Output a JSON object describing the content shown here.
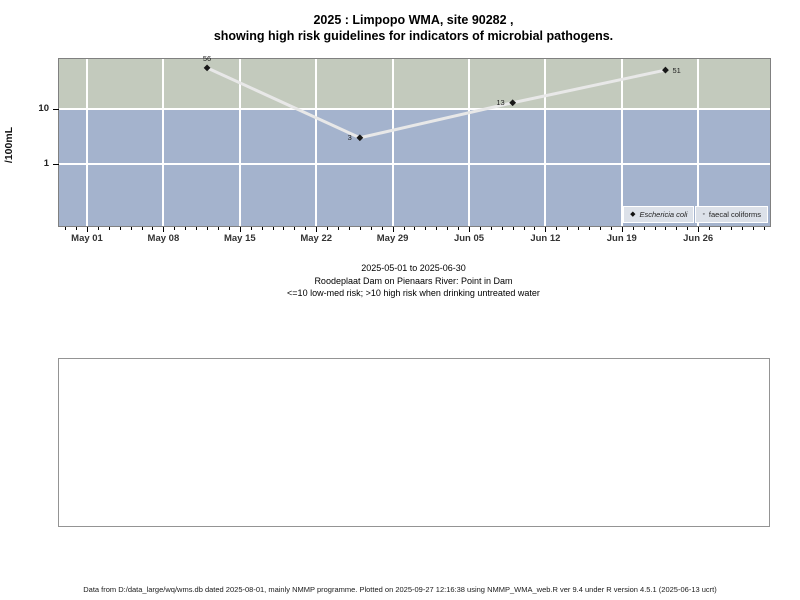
{
  "title": {
    "line1": "2025 : Limpopo WMA, site 90282 ,",
    "line2": "showing high risk guidelines for indicators of microbial pathogens."
  },
  "chart_data": {
    "type": "line",
    "title": "2025 : Limpopo WMA, site 90282 , showing high risk guidelines for indicators of microbial pathogens.",
    "ylabel": "/100mL",
    "y_scale": "log",
    "ylim": [
      0.07,
      75
    ],
    "x_range": [
      "2025-05-01",
      "2025-06-30"
    ],
    "x_ticks": [
      "May 01",
      "May 08",
      "May 15",
      "May 22",
      "May 29",
      "Jun 05",
      "Jun 12",
      "Jun 19",
      "Jun 26"
    ],
    "y_ticks": [
      {
        "value": 1,
        "label": "1"
      },
      {
        "value": 10,
        "label": "10"
      }
    ],
    "grid": true,
    "bands": {
      "threshold": 10,
      "above_color": "#c3cabd",
      "below_color": "#a4b3cd",
      "above_meaning": "high risk",
      "below_meaning": "low-med risk"
    },
    "line_color": "#e8e8e8",
    "marker_color": "#181818",
    "legend_position": "bottom-right inside plot",
    "series": [
      {
        "name": "Eschericia coli",
        "marker": "filled-diamond",
        "points": [
          {
            "date": "2025-05-12",
            "value": 56
          },
          {
            "date": "2025-05-26",
            "value": 3
          },
          {
            "date": "2025-06-09",
            "value": 13
          },
          {
            "date": "2025-06-23",
            "value": 51
          }
        ]
      },
      {
        "name": "faecal coliforms",
        "marker": "open-circle",
        "points": []
      }
    ]
  },
  "legend": {
    "items": [
      {
        "marker": "filled-diamond",
        "label": "Eschericia coli"
      },
      {
        "marker": "open-circle",
        "label": "faecal coliforms"
      }
    ]
  },
  "subtitle": {
    "line1": "2025-05-01 to 2025-06-30",
    "line2": "Roodeplaat Dam on Pienaars River: Point in Dam",
    "line3": "<=10 low-med risk; >10 high risk when drinking untreated water"
  },
  "footer": "Data from D:/data_large/wq/wms.db dated 2025-08-01, mainly NMMP programme. Plotted on 2025-09-27 12:16:38 using NMMP_WMA_web.R ver 9.4 under R version 4.5.1 (2025-06-13 ucrt)"
}
